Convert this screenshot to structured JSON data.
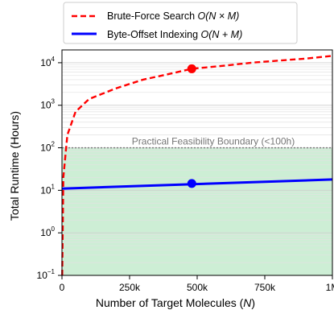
{
  "chart_data": {
    "type": "line",
    "xlabel_text": "Number of Target Molecules (",
    "xlabel_var": "N",
    "xlabel_close": ")",
    "ylabel": "Total Runtime (Hours)",
    "y_scale": "log",
    "xlim": [
      0,
      1000000
    ],
    "ylim": [
      0.1,
      20000
    ],
    "x_ticks": [
      {
        "value": 0,
        "label": "0"
      },
      {
        "value": 250000,
        "label": "250k"
      },
      {
        "value": 500000,
        "label": "500k"
      },
      {
        "value": 750000,
        "label": "750k"
      },
      {
        "value": 1000000,
        "label": "1M"
      }
    ],
    "y_ticks": [
      {
        "value": 0.1,
        "base": "10",
        "exp": "−1"
      },
      {
        "value": 1,
        "base": "10",
        "exp": "0"
      },
      {
        "value": 10,
        "base": "10",
        "exp": "1"
      },
      {
        "value": 100,
        "base": "10",
        "exp": "2"
      },
      {
        "value": 1000,
        "base": "10",
        "exp": "3"
      },
      {
        "value": 10000,
        "base": "10",
        "exp": "4"
      }
    ],
    "grid": true,
    "legend_position": "top",
    "feasibility_region": {
      "y_max": 100,
      "color": "#cdeed5"
    },
    "boundary": {
      "value": 100,
      "label": "Practical Feasibility Boundary (<100h)",
      "color": "#777777"
    },
    "series": [
      {
        "name_text": "Brute-Force Search ",
        "name_math": "O(N × M)",
        "color": "#ff0000",
        "style": "dashed",
        "x": [
          1000,
          5000,
          20000,
          50000,
          100000,
          200000,
          300000,
          400000,
          480000,
          600000,
          700000,
          800000,
          900000,
          1000000
        ],
        "y": [
          0.1,
          20,
          200,
          700,
          1400,
          2500,
          4000,
          5500,
          7200,
          8500,
          10000,
          11200,
          12500,
          14500
        ],
        "highlight": {
          "x": 480000,
          "y": 7200
        }
      },
      {
        "name_text": "Byte-Offset Indexing ",
        "name_math": "O(N + M)",
        "color": "#0000ff",
        "style": "solid",
        "x": [
          0,
          1000000
        ],
        "y": [
          11,
          18
        ],
        "highlight": {
          "x": 480000,
          "y": 14.5
        }
      }
    ]
  }
}
